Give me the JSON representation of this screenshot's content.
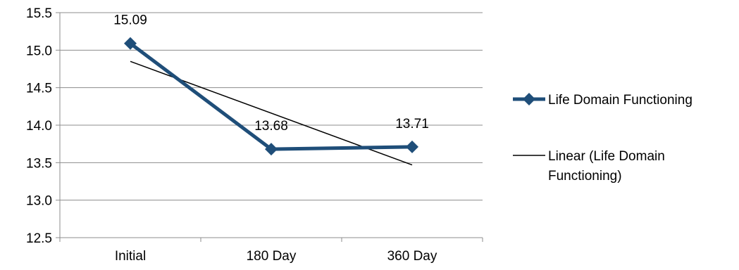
{
  "chart_data": {
    "type": "line",
    "categories": [
      "Initial",
      "180 Day",
      "360 Day"
    ],
    "series": [
      {
        "name": "Life Domain Functioning",
        "values": [
          15.09,
          13.68,
          13.71
        ],
        "data_labels": [
          "15.09",
          "13.68",
          "13.71"
        ],
        "color": "#1f4e79",
        "marker": "diamond"
      }
    ],
    "trendline": {
      "name": "Linear (Life Domain Functioning)",
      "name_lines": [
        "Linear (Life Domain",
        "Functioning)"
      ],
      "type": "linear",
      "color": "#000000"
    },
    "ylim": [
      12.5,
      15.5
    ],
    "yticks": [
      "12.5",
      "13.0",
      "13.5",
      "14.0",
      "14.5",
      "15.0",
      "15.5"
    ],
    "grid": true,
    "legend_position": "right",
    "title": "",
    "xlabel": "",
    "ylabel": ""
  }
}
